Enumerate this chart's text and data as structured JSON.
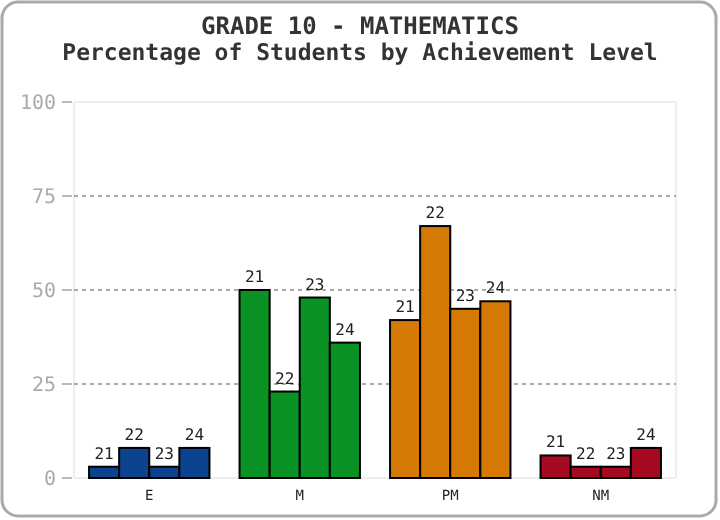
{
  "chart_data": {
    "type": "bar",
    "title": "GRADE 10 - MATHEMATICS",
    "subtitle": "Percentage of Students by Achievement Level",
    "categories": [
      "E",
      "M",
      "PM",
      "NM"
    ],
    "series": [
      {
        "name": "21",
        "colors": [
          "#0d428f",
          "#0a9224",
          "#d67a06",
          "#a50a20"
        ],
        "values": [
          3,
          50,
          42,
          6
        ]
      },
      {
        "name": "22",
        "colors": [
          "#0d428f",
          "#0a9224",
          "#d67a06",
          "#a50a20"
        ],
        "values": [
          8,
          23,
          67,
          3
        ]
      },
      {
        "name": "23",
        "colors": [
          "#0d428f",
          "#0a9224",
          "#d67a06",
          "#a50a20"
        ],
        "values": [
          3,
          48,
          45,
          3
        ]
      },
      {
        "name": "24",
        "colors": [
          "#0d428f",
          "#0a9224",
          "#d67a06",
          "#a50a20"
        ],
        "values": [
          8,
          36,
          47,
          8
        ]
      }
    ],
    "ylim": [
      0,
      100
    ],
    "yticks": [
      0,
      25,
      50,
      75,
      100
    ],
    "grid": "y"
  }
}
